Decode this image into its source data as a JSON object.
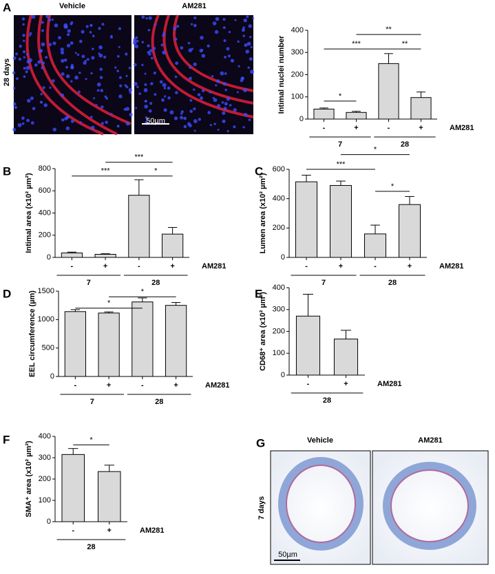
{
  "images": {
    "A": {
      "panel": "A",
      "columns": [
        "Vehicle",
        "AM281"
      ],
      "row": "28 days",
      "scale": "50µm"
    },
    "G": {
      "panel": "G",
      "columns": [
        "Vehicle",
        "AM281"
      ],
      "row": "7 days",
      "scale": "50µm"
    }
  },
  "chart_data": [
    {
      "type": "bar",
      "panel": null,
      "ylabel": "Intimal nuclei number",
      "categories": [
        "-",
        "+",
        "-",
        "+"
      ],
      "values": [
        45,
        30,
        250,
        97
      ],
      "errors": [
        5,
        5,
        45,
        25
      ],
      "color": "#d9d9d9",
      "ylim": [
        0,
        400
      ],
      "yticks": [
        0,
        100,
        200,
        300,
        400
      ],
      "groups": [
        {
          "label": "7",
          "from": 0,
          "to": 1
        },
        {
          "label": "28",
          "from": 2,
          "to": 3
        }
      ],
      "group_title": "AM281",
      "significance": [
        {
          "label": "*",
          "from": 0,
          "to": 1,
          "y": 81
        },
        {
          "label": "***",
          "from": 0,
          "to": 2,
          "y": 316
        },
        {
          "label": "**",
          "from": 2,
          "to": 3,
          "y": 316
        },
        {
          "label": "**",
          "from": 1,
          "to": 3,
          "y": 381
        }
      ]
    },
    {
      "type": "bar",
      "panel": "B",
      "ylabel": "Intimal area (x10² µm²)",
      "categories": [
        "-",
        "+",
        "-",
        "+"
      ],
      "values": [
        40,
        28,
        560,
        210
      ],
      "errors": [
        8,
        5,
        140,
        60
      ],
      "color": "#d9d9d9",
      "ylim": [
        0,
        800
      ],
      "yticks": [
        0,
        200,
        400,
        600,
        800
      ],
      "groups": [
        {
          "label": "7",
          "from": 0,
          "to": 1
        },
        {
          "label": "28",
          "from": 2,
          "to": 3
        }
      ],
      "group_title": "AM281",
      "significance": [
        {
          "label": "***",
          "from": 0,
          "to": 2,
          "y": 733
        },
        {
          "label": "*",
          "from": 2,
          "to": 3,
          "y": 733
        },
        {
          "label": "***",
          "from": 1,
          "to": 3,
          "y": 857
        }
      ]
    },
    {
      "type": "bar",
      "panel": "C",
      "ylabel": "Lumen area  (x10² µm²)",
      "categories": [
        "-",
        "+",
        "-",
        "+"
      ],
      "values": [
        515,
        490,
        160,
        360
      ],
      "errors": [
        45,
        30,
        60,
        55
      ],
      "color": "#d9d9d9",
      "ylim": [
        0,
        600
      ],
      "yticks": [
        0,
        200,
        400,
        600
      ],
      "groups": [
        {
          "label": "7",
          "from": 0,
          "to": 1
        },
        {
          "label": "28",
          "from": 2,
          "to": 3
        }
      ],
      "group_title": "AM281",
      "significance": [
        {
          "label": "***",
          "from": 0,
          "to": 2,
          "y": 600
        },
        {
          "label": "*",
          "from": 1,
          "to": 3,
          "y": 700
        },
        {
          "label": "*",
          "from": 2,
          "to": 3,
          "y": 450
        }
      ]
    },
    {
      "type": "bar",
      "panel": "D",
      "ylabel": "EEL circumference  (µm)",
      "categories": [
        "-",
        "+",
        "-",
        "+"
      ],
      "values": [
        1140,
        1115,
        1310,
        1250
      ],
      "errors": [
        35,
        20,
        70,
        50
      ],
      "color": "#d9d9d9",
      "ylim": [
        0,
        1500
      ],
      "yticks": [
        0,
        500,
        1000,
        1500
      ],
      "groups": [
        {
          "label": "7",
          "from": 0,
          "to": 1
        },
        {
          "label": "28",
          "from": 2,
          "to": 3
        }
      ],
      "group_title": "AM281",
      "significance": [
        {
          "label": "*",
          "from": 0,
          "to": 2,
          "y": 1200
        },
        {
          "label": "*",
          "from": 1,
          "to": 3,
          "y": 1400
        }
      ]
    },
    {
      "type": "bar",
      "panel": "E",
      "ylabel": "CD68⁺ area (x10² µm²)",
      "categories": [
        "-",
        "+"
      ],
      "values": [
        270,
        165
      ],
      "errors": [
        100,
        40
      ],
      "color": "#d9d9d9",
      "ylim": [
        0,
        400
      ],
      "yticks": [
        0,
        100,
        200,
        300,
        400
      ],
      "groups": [
        {
          "label": "28",
          "from": 0,
          "to": 1
        }
      ],
      "group_title": "AM281",
      "significance": []
    },
    {
      "type": "bar",
      "panel": "F",
      "ylabel": "SMA⁺ area (x10² µm²)",
      "categories": [
        "-",
        "+"
      ],
      "values": [
        315,
        235
      ],
      "errors": [
        28,
        30
      ],
      "color": "#d9d9d9",
      "ylim": [
        0,
        400
      ],
      "yticks": [
        0,
        100,
        200,
        300,
        400
      ],
      "groups": [
        {
          "label": "28",
          "from": 0,
          "to": 1
        }
      ],
      "group_title": "AM281",
      "significance": [
        {
          "label": "*",
          "from": 0,
          "to": 1,
          "y": 360
        }
      ]
    }
  ]
}
